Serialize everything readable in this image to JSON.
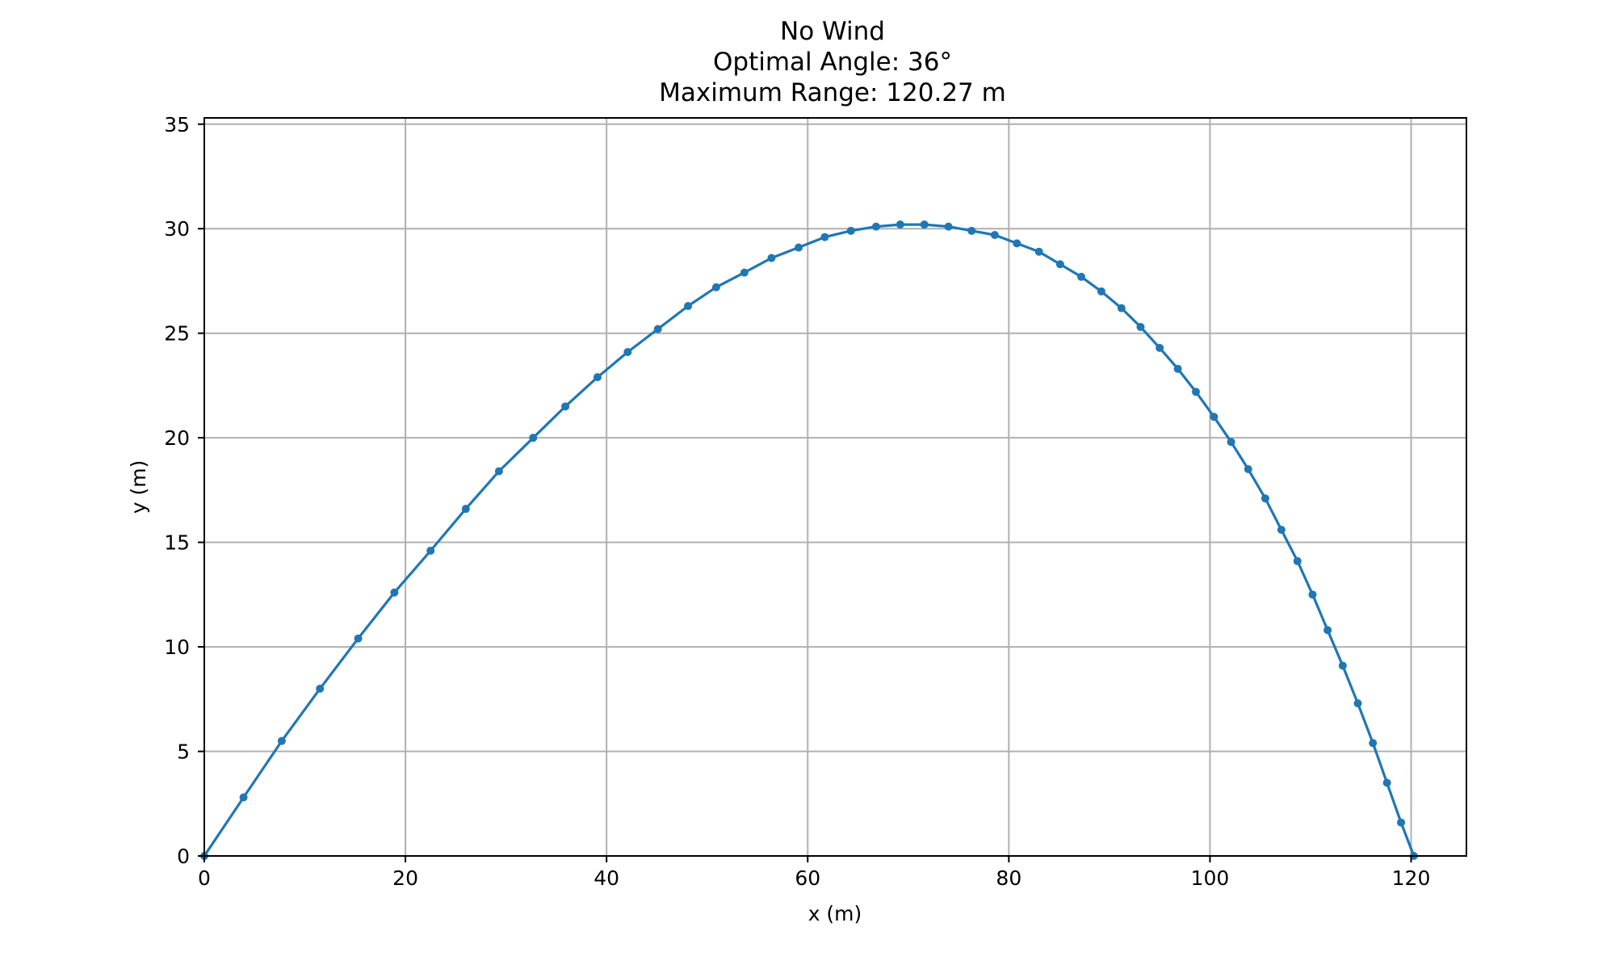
{
  "chart_data": {
    "type": "line",
    "title_lines": [
      "No Wind",
      "Optimal Angle: 36°",
      "Maximum Range: 120.27 m"
    ],
    "xlabel": "x (m)",
    "ylabel": "y (m)",
    "xlim": [
      0,
      125.5
    ],
    "ylim": [
      0,
      35.3
    ],
    "xticks": [
      0,
      20,
      40,
      60,
      80,
      100,
      120
    ],
    "yticks": [
      0,
      5,
      10,
      15,
      20,
      25,
      30,
      35
    ],
    "grid": true,
    "legend": "none",
    "series": [
      {
        "color": "#1f77b4",
        "marker": "circle",
        "x": [
          0,
          3.9,
          7.7,
          11.5,
          15.3,
          18.9,
          22.5,
          26.0,
          29.3,
          32.7,
          35.9,
          39.1,
          42.1,
          45.1,
          48.1,
          50.9,
          53.7,
          56.4,
          59.1,
          61.7,
          64.3,
          66.8,
          69.2,
          71.6,
          74.0,
          76.3,
          78.6,
          80.8,
          83.0,
          85.1,
          87.2,
          89.2,
          91.2,
          93.1,
          95.0,
          96.8,
          98.6,
          100.4,
          102.1,
          103.8,
          105.5,
          107.1,
          108.7,
          110.2,
          111.7,
          113.2,
          114.7,
          116.2,
          117.6,
          119.0,
          120.27
        ],
        "y": [
          0,
          2.8,
          5.5,
          8.0,
          10.4,
          12.6,
          14.6,
          16.6,
          18.4,
          20.0,
          21.5,
          22.9,
          24.1,
          25.2,
          26.3,
          27.2,
          27.9,
          28.6,
          29.1,
          29.6,
          29.9,
          30.1,
          30.2,
          30.2,
          30.1,
          29.9,
          29.7,
          29.3,
          28.9,
          28.3,
          27.7,
          27.0,
          26.2,
          25.3,
          24.3,
          23.3,
          22.2,
          21.0,
          19.8,
          18.5,
          17.1,
          15.6,
          14.1,
          12.5,
          10.8,
          9.1,
          7.3,
          5.4,
          3.5,
          1.6,
          0
        ]
      }
    ]
  }
}
